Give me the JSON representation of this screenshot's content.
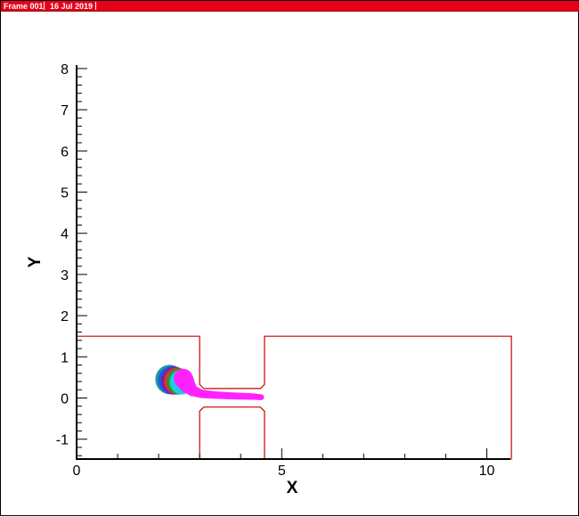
{
  "header": {
    "frame_label": "Frame 001",
    "date_label": "16 Jul 2019",
    "bar_color": "#e8001b"
  },
  "chart_data": {
    "type": "scatter",
    "title": "",
    "xlabel": "X",
    "ylabel": "Y",
    "xlim": [
      0,
      10.6
    ],
    "ylim": [
      -1.5,
      8.2
    ],
    "x_ticks": [
      0,
      5,
      10
    ],
    "y_ticks": [
      -1,
      0,
      1,
      2,
      3,
      4,
      5,
      6,
      7,
      8
    ],
    "grid": false,
    "legend": "none",
    "boundary_color": "#cc0000",
    "geometry": {
      "upper_boundary": [
        [
          0,
          1.5
        ],
        [
          3.0,
          1.5
        ],
        [
          3.0,
          0.33
        ],
        [
          3.1,
          0.23
        ],
        [
          4.48,
          0.23
        ],
        [
          4.58,
          0.33
        ],
        [
          4.58,
          1.5
        ],
        [
          10.6,
          1.5
        ],
        [
          10.6,
          -1.5
        ]
      ],
      "lower_boundary": [
        [
          3.0,
          -1.5
        ],
        [
          3.0,
          -0.32
        ],
        [
          3.1,
          -0.22
        ],
        [
          4.48,
          -0.22
        ],
        [
          4.58,
          -0.32
        ],
        [
          4.58,
          -1.5
        ]
      ]
    },
    "particle_groups": [
      {
        "cx": 2.27,
        "cy": 0.45,
        "r": 0.35,
        "color": "#1a9a9a"
      },
      {
        "cx": 2.33,
        "cy": 0.43,
        "r": 0.34,
        "color": "#2255ee"
      },
      {
        "cx": 2.39,
        "cy": 0.42,
        "r": 0.33,
        "color": "#7a1fa0"
      },
      {
        "cx": 2.45,
        "cy": 0.41,
        "r": 0.32,
        "color": "#e03030"
      },
      {
        "cx": 2.51,
        "cy": 0.4,
        "r": 0.31,
        "color": "#1fa01f"
      },
      {
        "cx": 2.57,
        "cy": 0.39,
        "r": 0.3,
        "color": "#22c8e8"
      }
    ],
    "jet": {
      "color": "#ff22ff",
      "points": [
        [
          2.6,
          0.48
        ],
        [
          2.68,
          0.34
        ],
        [
          2.82,
          0.18
        ],
        [
          3.05,
          0.1
        ],
        [
          3.4,
          0.07
        ],
        [
          3.8,
          0.05
        ],
        [
          4.2,
          0.04
        ],
        [
          4.5,
          0.02
        ]
      ],
      "widths": [
        0.46,
        0.4,
        0.26,
        0.2,
        0.18,
        0.17,
        0.16,
        0.14
      ]
    }
  }
}
